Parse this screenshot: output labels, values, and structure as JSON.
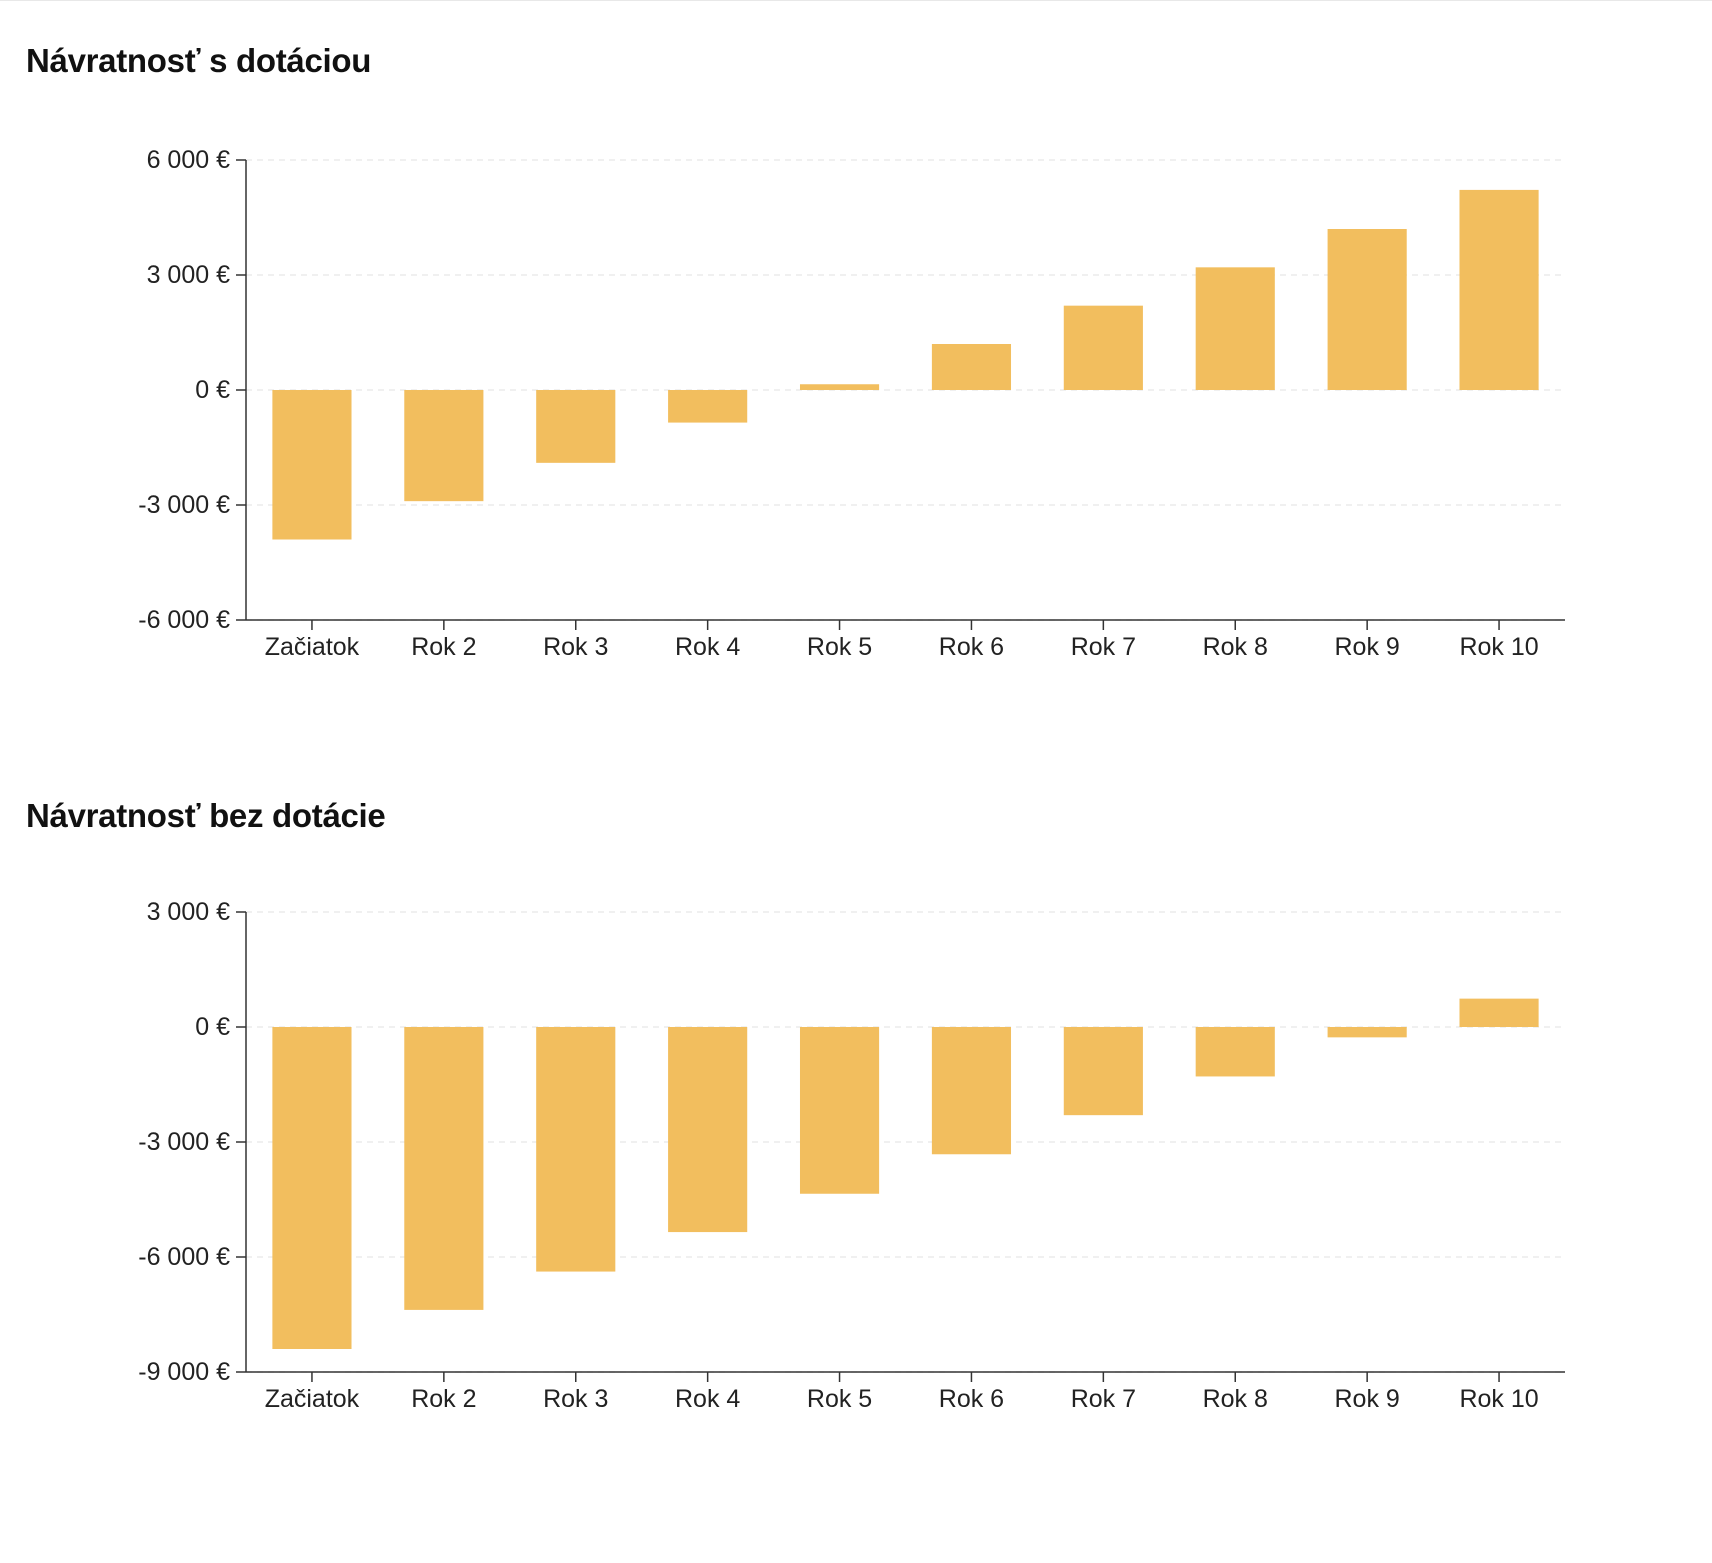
{
  "colors": {
    "bar": "#F2BE5E",
    "axis": "#333333",
    "grid": "#e6e6e6",
    "text": "#222222"
  },
  "chart_data": [
    {
      "type": "bar",
      "title": "Návratnosť s dotáciou",
      "xlabel": "",
      "ylabel": "",
      "categories": [
        "Začiatok",
        "Rok 2",
        "Rok 3",
        "Rok 4",
        "Rok 5",
        "Rok 6",
        "Rok 7",
        "Rok 8",
        "Rok 9",
        "Rok 10"
      ],
      "values": [
        -3900,
        -2900,
        -1900,
        -850,
        150,
        1200,
        2200,
        3200,
        4200,
        5220
      ],
      "ylim": [
        -6000,
        6000
      ],
      "yticks": [
        6000,
        3000,
        0,
        -3000,
        -6000
      ],
      "ytick_labels": [
        "6 000 €",
        "3 000 €",
        "0 €",
        "-3 000 €",
        "-6 000 €"
      ],
      "grid": true,
      "legend": "none"
    },
    {
      "type": "bar",
      "title": "Návratnosť bez dotácie",
      "xlabel": "",
      "ylabel": "",
      "categories": [
        "Začiatok",
        "Rok 2",
        "Rok 3",
        "Rok 4",
        "Rok 5",
        "Rok 6",
        "Rok 7",
        "Rok 8",
        "Rok 9",
        "Rok 10"
      ],
      "values": [
        -8400,
        -7380,
        -6380,
        -5350,
        -4350,
        -3320,
        -2300,
        -1290,
        -270,
        740
      ],
      "ylim": [
        -9000,
        3000
      ],
      "yticks": [
        3000,
        0,
        -3000,
        -6000,
        -9000
      ],
      "ytick_labels": [
        "3 000 €",
        "0 €",
        "-3 000 €",
        "-6 000 €",
        "-9 000 €"
      ],
      "grid": true,
      "legend": "none"
    }
  ]
}
